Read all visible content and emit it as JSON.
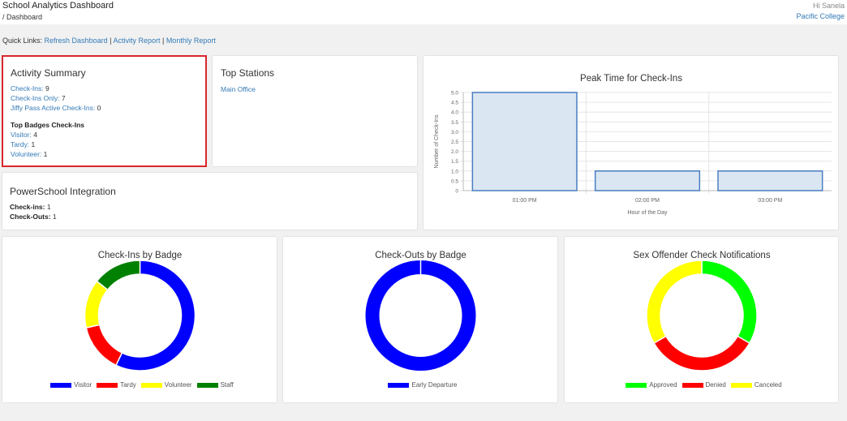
{
  "header": {
    "app_title": "School Analytics Dashboard",
    "breadcrumb": "/ Dashboard",
    "greeting": "Hi Sanela",
    "college": "Pacific College"
  },
  "quick_links": {
    "label": "Quick Links:",
    "refresh": "Refresh Dashboard",
    "sep1": " | ",
    "activity": "Activity Report",
    "sep2": " | ",
    "monthly": "Monthly Report"
  },
  "activity_summary": {
    "title": "Activity Summary",
    "checkins_label": "Check-Ins:",
    "checkins_value": "9",
    "checkins_only_label": "Check-Ins Only:",
    "checkins_only_value": "7",
    "jiffy_label": "Jiffy Pass Active Check-Ins:",
    "jiffy_value": "0",
    "badges_heading": "Top Badges Check-Ins",
    "visitor_label": "Visitor:",
    "visitor_value": "4",
    "tardy_label": "Tardy:",
    "tardy_value": "1",
    "volunteer_label": "Volunteer:",
    "volunteer_value": "1"
  },
  "top_stations": {
    "title": "Top Stations",
    "station": "Main Office"
  },
  "powerschool": {
    "title": "PowerSchool Integration",
    "checkins_label": "Check-ins:",
    "checkins_value": "1",
    "checkouts_label": "Check-Outs:",
    "checkouts_value": "1"
  },
  "colors": {
    "link": "#337ab7",
    "highlight_border": "#d9262c",
    "bar_fill": "#dae6f2",
    "bar_stroke": "#4a7fc1"
  },
  "chart_data": [
    {
      "type": "bar",
      "title": "Peak Time for Check-Ins",
      "categories": [
        "01:00 PM",
        "02:00 PM",
        "03:00 PM"
      ],
      "values": [
        5,
        1,
        1
      ],
      "xlabel": "Hour of the Day",
      "ylabel": "Number of Check-Ins",
      "ylim": [
        0,
        5
      ],
      "yticks": [
        "0",
        "0.5",
        "1.0",
        "1.5",
        "2.0",
        "2.5",
        "3.0",
        "3.5",
        "4.0",
        "4.5",
        "5.0"
      ],
      "grid": true
    },
    {
      "type": "pie",
      "title": "Check-Ins by Badge",
      "labels": [
        "Visitor",
        "Tardy",
        "Volunteer",
        "Staff"
      ],
      "values": [
        4,
        1,
        1,
        1
      ],
      "colors": [
        "#0000ff",
        "#ff0000",
        "#ffff00",
        "#008000"
      ],
      "legend": "bottom"
    },
    {
      "type": "pie",
      "title": "Check-Outs by Badge",
      "labels": [
        "Early Departure"
      ],
      "values": [
        1
      ],
      "colors": [
        "#0000ff"
      ],
      "legend": "bottom"
    },
    {
      "type": "pie",
      "title": "Sex Offender Check Notifications",
      "labels": [
        "Approved",
        "Denied",
        "Canceled"
      ],
      "values": [
        1,
        1,
        1
      ],
      "colors": [
        "#00ff00",
        "#ff0000",
        "#ffff00"
      ],
      "legend": "bottom"
    }
  ]
}
